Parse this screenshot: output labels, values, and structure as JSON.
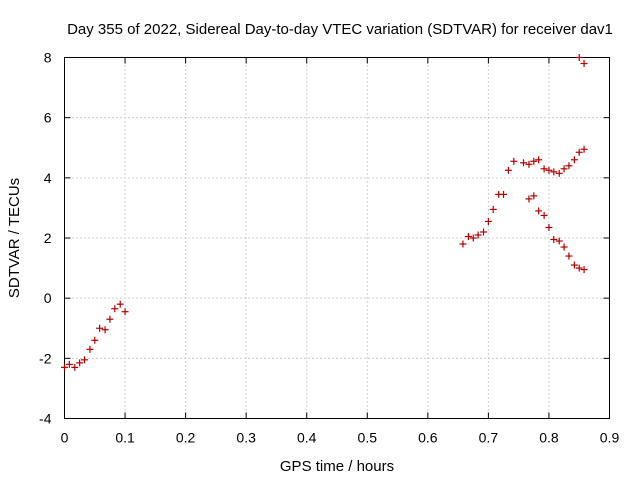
{
  "chart_data": {
    "type": "scatter",
    "title": "Day 355 of 2022, Sidereal Day-to-day VTEC variation (SDTVAR) for receiver dav1",
    "xlabel": "GPS time / hours",
    "ylabel": "SDTVAR / TECUs",
    "xlim": [
      0,
      0.9
    ],
    "ylim": [
      -4,
      8
    ],
    "xticks": [
      0,
      0.1,
      0.2,
      0.3,
      0.4,
      0.5,
      0.6,
      0.7,
      0.8,
      0.9
    ],
    "xtick_labels": [
      "0",
      "0.1",
      "0.2",
      "0.3",
      "0.4",
      "0.5",
      "0.6",
      "0.7",
      "0.8",
      "0.9"
    ],
    "yticks": [
      -4,
      -2,
      0,
      2,
      4,
      6,
      8
    ],
    "ytick_labels": [
      "-4",
      "-2",
      "0",
      "2",
      "4",
      "6",
      "8"
    ],
    "grid": true,
    "marker": "plus",
    "color": "#b30000",
    "series": [
      {
        "name": "dav1",
        "points": [
          [
            0.0,
            -2.3
          ],
          [
            0.008,
            -2.2
          ],
          [
            0.017,
            -2.3
          ],
          [
            0.025,
            -2.15
          ],
          [
            0.033,
            -2.05
          ],
          [
            0.042,
            -1.7
          ],
          [
            0.05,
            -1.4
          ],
          [
            0.058,
            -1.0
          ],
          [
            0.067,
            -1.05
          ],
          [
            0.075,
            -0.7
          ],
          [
            0.083,
            -0.35
          ],
          [
            0.092,
            -0.2
          ],
          [
            0.1,
            -0.45
          ],
          [
            0.658,
            1.8
          ],
          [
            0.667,
            2.05
          ],
          [
            0.675,
            2.0
          ],
          [
            0.683,
            2.1
          ],
          [
            0.692,
            2.2
          ],
          [
            0.7,
            2.55
          ],
          [
            0.708,
            2.95
          ],
          [
            0.717,
            3.45
          ],
          [
            0.725,
            3.45
          ],
          [
            0.733,
            4.25
          ],
          [
            0.742,
            4.55
          ],
          [
            0.758,
            4.5
          ],
          [
            0.767,
            4.45
          ],
          [
            0.775,
            4.55
          ],
          [
            0.783,
            4.6
          ],
          [
            0.792,
            4.3
          ],
          [
            0.8,
            4.25
          ],
          [
            0.808,
            4.2
          ],
          [
            0.817,
            4.15
          ],
          [
            0.825,
            4.3
          ],
          [
            0.833,
            4.4
          ],
          [
            0.842,
            4.6
          ],
          [
            0.85,
            4.85
          ],
          [
            0.858,
            4.95
          ],
          [
            0.767,
            3.3
          ],
          [
            0.775,
            3.4
          ],
          [
            0.783,
            2.9
          ],
          [
            0.792,
            2.75
          ],
          [
            0.8,
            2.35
          ],
          [
            0.808,
            1.95
          ],
          [
            0.817,
            1.9
          ],
          [
            0.825,
            1.7
          ],
          [
            0.833,
            1.4
          ],
          [
            0.842,
            1.1
          ],
          [
            0.85,
            1.0
          ],
          [
            0.858,
            0.95
          ],
          [
            0.85,
            8.0
          ],
          [
            0.858,
            7.8
          ]
        ]
      }
    ]
  }
}
